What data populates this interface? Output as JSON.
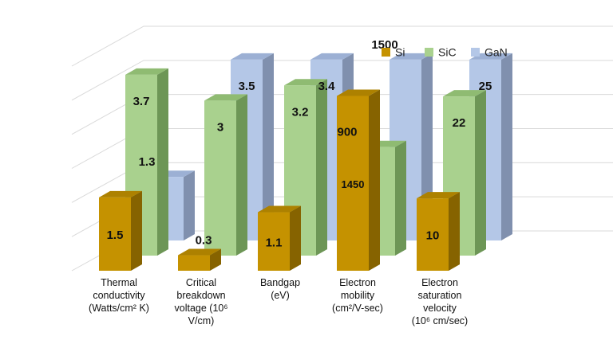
{
  "chart_data": {
    "type": "bar",
    "variant": "3d-depth",
    "categories": [
      "Thermal conductivity (Watts/cm² K)",
      "Critical breakdown voltage (10⁶ V/cm)",
      "Bandgap (eV)",
      "Electron mobility (cm²/V-sec)",
      "Electron saturation velocity (10⁶ cm/sec)"
    ],
    "category_lines": [
      [
        "Thermal",
        "conductivity",
        "(Watts/cm² K)"
      ],
      [
        "Critical",
        "breakdown",
        "voltage (10⁶",
        "V/cm)"
      ],
      [
        "Bandgap",
        "(eV)"
      ],
      [
        "Electron",
        "mobility",
        "(cm²/V-sec)"
      ],
      [
        "Electron",
        "saturation",
        "velocity",
        "(10⁶ cm/sec)"
      ]
    ],
    "series": [
      {
        "name": "Si",
        "values": [
          1.5,
          0.3,
          1.1,
          1450,
          10
        ],
        "labels": [
          "1.5",
          "0.3",
          "1.1",
          "1450",
          "10"
        ],
        "front": "#c59200",
        "top": "#ad8100",
        "side": "#866300"
      },
      {
        "name": "SiC",
        "values": [
          3.7,
          3,
          3.2,
          900,
          22
        ],
        "labels": [
          "3.7",
          "3",
          "3.2",
          "900",
          "22"
        ],
        "front": "#a9d18e",
        "top": "#8fbb72",
        "side": "#6d9656"
      },
      {
        "name": "GaN",
        "values": [
          1.3,
          3.5,
          3.4,
          1500,
          25
        ],
        "labels": [
          "1.3",
          "3.5",
          "3.4",
          "1500",
          "25"
        ],
        "front": "#b4c7e7",
        "top": "#9cb0d4",
        "side": "#8090ae"
      }
    ],
    "legend_position": "top-right",
    "gridlines": true,
    "axis_labels_shown": false
  }
}
